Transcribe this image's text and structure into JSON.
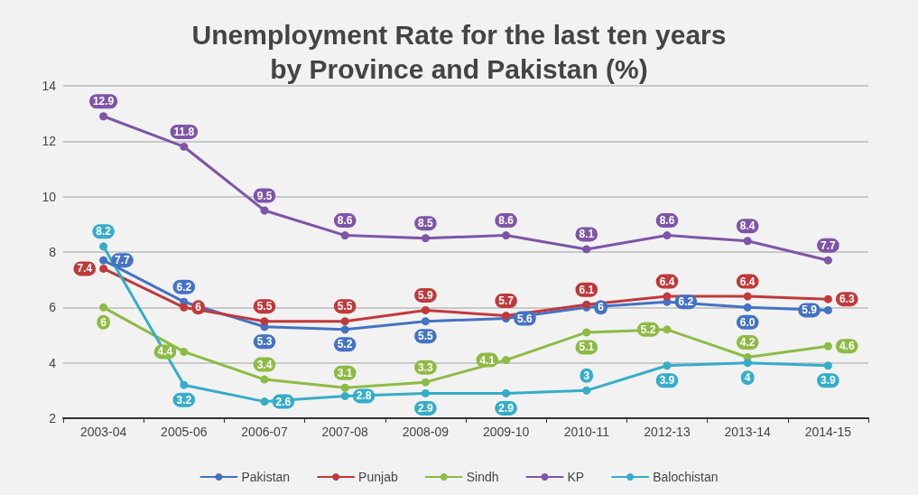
{
  "chart_data": {
    "type": "line",
    "title": "Unemployment Rate for the last ten years\nby Province and Pakistan (%)",
    "categories": [
      "2003-04",
      "2005-06",
      "2006-07",
      "2007-08",
      "2008-09",
      "2009-10",
      "2010-11",
      "2012-13",
      "2013-14",
      "2014-15"
    ],
    "series": [
      {
        "name": "Pakistan",
        "color": "#4472c4",
        "values": [
          7.7,
          6.2,
          5.3,
          5.2,
          5.5,
          5.6,
          6,
          6.2,
          6.0,
          5.9
        ],
        "value_labels": [
          "7.7",
          "6.2",
          "5.3",
          "5.2",
          "5.5",
          "5.6",
          "6",
          "6.2",
          "6.0",
          "5.9"
        ]
      },
      {
        "name": "Punjab",
        "color": "#c0393b",
        "values": [
          7.4,
          6,
          5.5,
          5.5,
          5.9,
          5.7,
          6.1,
          6.4,
          6.4,
          6.3
        ],
        "value_labels": [
          "7.4",
          "6",
          "5.5",
          "5.5",
          "5.9",
          "5.7",
          "6.1",
          "6.4",
          "6.4",
          "6.3"
        ]
      },
      {
        "name": "Sindh",
        "color": "#8dbb44",
        "values": [
          6,
          4.4,
          3.4,
          3.1,
          3.3,
          4.1,
          5.1,
          5.2,
          4.2,
          4.6
        ],
        "value_labels": [
          "6",
          "4.4",
          "3.4",
          "3.1",
          "3.3",
          "4.1",
          "5.1",
          "5.2",
          "4.2",
          "4.6"
        ]
      },
      {
        "name": "KP",
        "color": "#7e55a8",
        "values": [
          12.9,
          11.8,
          9.5,
          8.6,
          8.5,
          8.6,
          8.1,
          8.6,
          8.4,
          7.7
        ],
        "value_labels": [
          "12.9",
          "11.8",
          "9.5",
          "8.6",
          "8.5",
          "8.6",
          "8.1",
          "8.6",
          "8.4",
          "7.7"
        ]
      },
      {
        "name": "Balochistan",
        "color": "#35adc9",
        "values": [
          8.2,
          3.2,
          2.6,
          2.8,
          2.9,
          2.9,
          3,
          3.9,
          4,
          3.9
        ],
        "value_labels": [
          "8.2",
          "3.2",
          "2.6",
          "2.8",
          "2.9",
          "2.9",
          "3",
          "3.9",
          "4",
          "3.9"
        ]
      }
    ],
    "ylim": [
      2,
      14
    ],
    "yticks": [
      2,
      4,
      6,
      8,
      10,
      12,
      14
    ],
    "grid": "y",
    "legend": "bottom",
    "marker": "circle",
    "line_style": "solid"
  }
}
